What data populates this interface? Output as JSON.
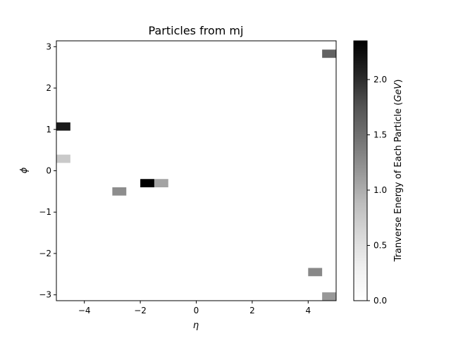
{
  "chart_data": {
    "type": "heatmap",
    "title": "Particles from mj",
    "xlabel": "η",
    "ylabel": "ϕ",
    "xlim": [
      -5,
      5
    ],
    "ylim": [
      -3.1416,
      3.1416
    ],
    "xticks": [
      -4,
      -2,
      0,
      2,
      4
    ],
    "xtick_labels": [
      "−4",
      "−2",
      "0",
      "2",
      "4"
    ],
    "yticks": [
      -3,
      -2,
      -1,
      0,
      1,
      2,
      3
    ],
    "ytick_labels": [
      "−3",
      "−2",
      "−1",
      "0",
      "1",
      "2",
      "3"
    ],
    "colorbar": {
      "label": "Tranverse Energy of Each Particle (GeV)",
      "label_prefix": "Tranverse Energy of Each Particle (",
      "label_unit": "GeV",
      "label_suffix": ")",
      "range": [
        0,
        2.35
      ],
      "ticks": [
        0,
        0.5,
        1.0,
        1.5,
        2.0
      ],
      "tick_labels": [
        "0.0",
        "0.5",
        "1.0",
        "1.5",
        "2.0"
      ],
      "colormap": "Greys"
    },
    "cell_size": {
      "eta": 0.5,
      "phi": 0.2
    },
    "cells": [
      {
        "eta": -4.75,
        "phi": 1.07,
        "value": 2.1
      },
      {
        "eta": -4.75,
        "phi": 0.29,
        "value": 0.5
      },
      {
        "eta": -2.75,
        "phi": -0.5,
        "value": 1.05
      },
      {
        "eta": -1.75,
        "phi": -0.3,
        "value": 2.35
      },
      {
        "eta": -1.25,
        "phi": -0.3,
        "value": 0.85
      },
      {
        "eta": 4.25,
        "phi": -2.45,
        "value": 1.1
      },
      {
        "eta": 4.75,
        "phi": 2.83,
        "value": 1.45
      },
      {
        "eta": 4.75,
        "phi": -3.04,
        "value": 0.95
      }
    ]
  }
}
